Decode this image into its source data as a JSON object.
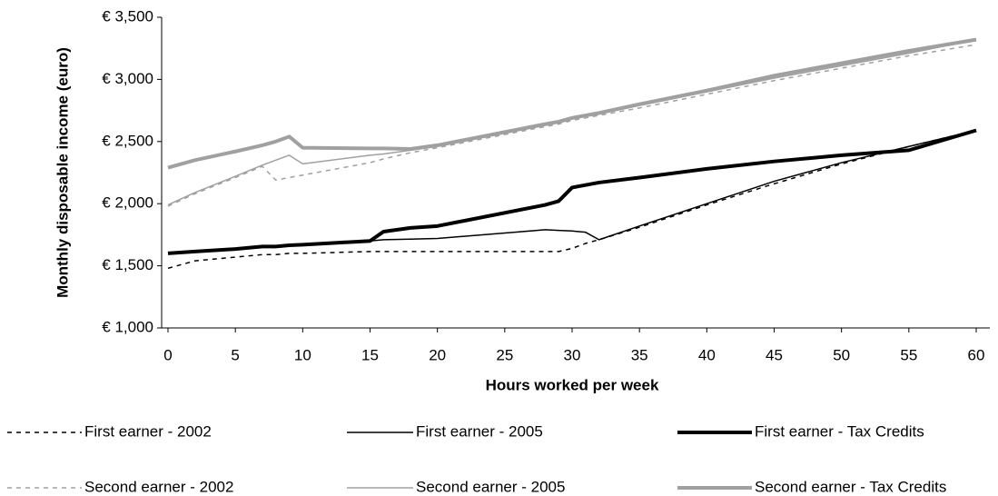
{
  "chart_data": {
    "type": "line",
    "x_label": "Hours worked per week",
    "y_label": "Monthly disposable income (euro)",
    "x": [
      0,
      2,
      5,
      7,
      8,
      9,
      10,
      15,
      16,
      18,
      20,
      28,
      29,
      30,
      31,
      32,
      35,
      40,
      45,
      50,
      55,
      60
    ],
    "xlim": [
      0,
      60
    ],
    "xticks": [
      0,
      5,
      10,
      15,
      20,
      25,
      30,
      35,
      40,
      45,
      50,
      55,
      60
    ],
    "ylim": [
      1000,
      3500
    ],
    "yticks": [
      {
        "value": 1000,
        "label": "€ 1,000"
      },
      {
        "value": 1500,
        "label": "€ 1,500"
      },
      {
        "value": 2000,
        "label": "€ 2,000"
      },
      {
        "value": 2500,
        "label": "€ 2,500"
      },
      {
        "value": 3000,
        "label": "€ 3,000"
      },
      {
        "value": 3500,
        "label": "€ 3,500"
      }
    ],
    "grid": false,
    "legend": "bottom",
    "series": [
      {
        "name": "First earner - 2002",
        "color": "#000000",
        "dashed": true,
        "line_width": 1.5,
        "values": [
          1480,
          1540,
          1570,
          1590,
          1590,
          1600,
          1600,
          1615,
          1615,
          1615,
          1615,
          1615,
          1615,
          1640,
          1680,
          1710,
          1810,
          1990,
          2160,
          2320,
          2460,
          2590
        ]
      },
      {
        "name": "First earner - 2005",
        "color": "#000000",
        "dashed": false,
        "line_width": 1.5,
        "values": [
          1600,
          1610,
          1630,
          1650,
          1655,
          1660,
          1670,
          1700,
          1710,
          1715,
          1720,
          1790,
          1785,
          1780,
          1770,
          1710,
          1820,
          2000,
          2180,
          2330,
          2460,
          2590
        ]
      },
      {
        "name": "First earner - Tax Credits",
        "color": "#000000",
        "dashed": false,
        "line_width": 4,
        "values": [
          1600,
          1615,
          1635,
          1655,
          1655,
          1665,
          1670,
          1700,
          1775,
          1805,
          1820,
          1990,
          2020,
          2130,
          2150,
          2170,
          2210,
          2280,
          2340,
          2390,
          2430,
          2590
        ]
      },
      {
        "name": "Second earner - 2002",
        "color": "#a0a0a0",
        "dashed": true,
        "line_width": 1.5,
        "values": [
          1980,
          2080,
          2210,
          2300,
          2190,
          2210,
          2230,
          2330,
          2360,
          2410,
          2450,
          2620,
          2640,
          2670,
          2690,
          2710,
          2770,
          2880,
          2990,
          3090,
          3190,
          3280
        ]
      },
      {
        "name": "Second earner - 2005",
        "color": "#a0a0a0",
        "dashed": false,
        "line_width": 1.5,
        "values": [
          1990,
          2090,
          2220,
          2310,
          2350,
          2390,
          2320,
          2390,
          2400,
          2430,
          2460,
          2630,
          2650,
          2680,
          2700,
          2720,
          2790,
          2900,
          3010,
          3110,
          3210,
          3320
        ]
      },
      {
        "name": "Second earner - Tax Credits",
        "color": "#a0a0a0",
        "dashed": false,
        "line_width": 4,
        "values": [
          2290,
          2350,
          2420,
          2470,
          2500,
          2540,
          2450,
          2445,
          2445,
          2440,
          2470,
          2640,
          2660,
          2690,
          2710,
          2730,
          2800,
          2910,
          3030,
          3130,
          3230,
          3320
        ]
      }
    ]
  }
}
